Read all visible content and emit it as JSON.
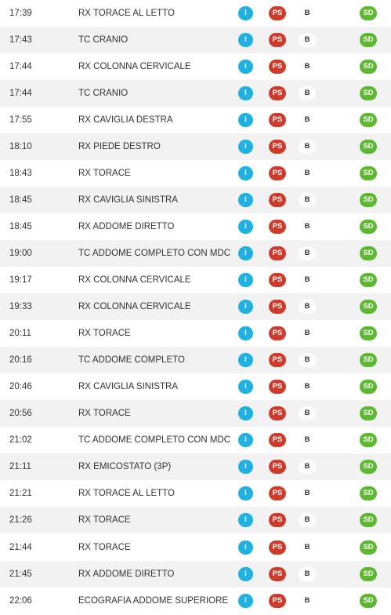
{
  "labels": {
    "i": "I",
    "ps": "PS",
    "b": "B",
    "sd": "SD"
  },
  "colors": {
    "i": "#1fb1e1",
    "ps": "#cf3b2a",
    "sd": "#5cb82e",
    "row_alt": "#f2f2f2"
  },
  "rows": [
    {
      "time": "17:39",
      "exam": "RX TORACE AL LETTO"
    },
    {
      "time": "17:43",
      "exam": "TC CRANIO"
    },
    {
      "time": "17:44",
      "exam": "RX COLONNA CERVICALE"
    },
    {
      "time": "17:44",
      "exam": "TC CRANIO"
    },
    {
      "time": "17:55",
      "exam": "RX CAVIGLIA DESTRA"
    },
    {
      "time": "18:10",
      "exam": "RX PIEDE DESTRO"
    },
    {
      "time": "18:43",
      "exam": "RX TORACE"
    },
    {
      "time": "18:45",
      "exam": "RX CAVIGLIA SINISTRA"
    },
    {
      "time": "18:45",
      "exam": "RX ADDOME DIRETTO"
    },
    {
      "time": "19:00",
      "exam": "TC ADDOME COMPLETO CON MDC"
    },
    {
      "time": "19:17",
      "exam": "RX COLONNA CERVICALE"
    },
    {
      "time": "19:33",
      "exam": "RX COLONNA CERVICALE"
    },
    {
      "time": "20:11",
      "exam": "RX TORACE"
    },
    {
      "time": "20:16",
      "exam": "TC ADDOME COMPLETO"
    },
    {
      "time": "20:46",
      "exam": "RX CAVIGLIA SINISTRA"
    },
    {
      "time": "20:56",
      "exam": "RX TORACE"
    },
    {
      "time": "21:02",
      "exam": "TC ADDOME COMPLETO CON MDC"
    },
    {
      "time": "21:11",
      "exam": "RX EMICOSTATO (3P)"
    },
    {
      "time": "21:21",
      "exam": "RX TORACE AL LETTO"
    },
    {
      "time": "21:26",
      "exam": "RX TORACE"
    },
    {
      "time": "21:44",
      "exam": "RX TORACE"
    },
    {
      "time": "21:45",
      "exam": "RX ADDOME DIRETTO"
    },
    {
      "time": "22:06",
      "exam": "ECOGRAFIA ADDOME SUPERIORE"
    }
  ]
}
